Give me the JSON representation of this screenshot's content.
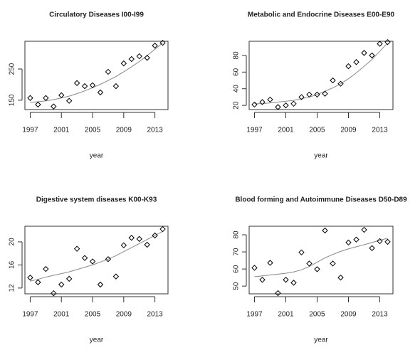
{
  "chart_data": [
    {
      "type": "scatter",
      "title": "Circulatory Diseases I00-I99",
      "x_label": "year",
      "x": [
        1997,
        1998,
        1999,
        2000,
        2001,
        2002,
        2003,
        2004,
        2005,
        2006,
        2007,
        2008,
        2009,
        2010,
        2011,
        2012,
        2013,
        2014
      ],
      "values": [
        157,
        136,
        157,
        130,
        166,
        148,
        205,
        195,
        198,
        175,
        241,
        195,
        268,
        282,
        291,
        286,
        325,
        334
      ],
      "trend": [
        143,
        145,
        148,
        152,
        157,
        163,
        171,
        180,
        190,
        201,
        213,
        226,
        241,
        257,
        274,
        293,
        313,
        334
      ],
      "xlim": [
        1996.32,
        2014.68
      ],
      "xticks": [
        1997,
        2001,
        2005,
        2009,
        2013
      ],
      "ylim": [
        120,
        339
      ],
      "yticks": [
        150,
        250
      ],
      "color": "#000000",
      "trend_color": "#888888"
    },
    {
      "type": "scatter",
      "title": "Metabolic and Endocrine Diseases E00-E90",
      "x_label": "year",
      "x": [
        1997,
        1998,
        1999,
        2000,
        2001,
        2002,
        2003,
        2004,
        2005,
        2006,
        2007,
        2008,
        2009,
        2010,
        2011,
        2012,
        2013,
        2014
      ],
      "values": [
        21,
        24,
        27,
        18,
        20,
        22,
        30,
        33,
        33,
        34,
        50,
        46,
        67,
        72,
        83,
        80,
        94,
        96
      ],
      "trend": [
        22,
        22,
        23,
        24,
        25,
        26,
        28,
        30,
        33,
        37,
        41,
        46,
        52,
        59,
        67,
        75,
        85,
        95
      ],
      "xlim": [
        1996.32,
        2014.68
      ],
      "xticks": [
        1997,
        2001,
        2005,
        2009,
        2013
      ],
      "ylim": [
        15,
        97
      ],
      "yticks": [
        20,
        40,
        60,
        80
      ],
      "color": "#000000",
      "trend_color": "#888888"
    },
    {
      "type": "scatter",
      "title": "Digestive system diseases K00-K93",
      "x_label": "year",
      "x": [
        1997,
        1998,
        1999,
        2000,
        2001,
        2002,
        2003,
        2004,
        2005,
        2006,
        2007,
        2008,
        2009,
        2010,
        2011,
        2012,
        2013,
        2014
      ],
      "values": [
        13.8,
        13,
        15.3,
        11.1,
        12.6,
        13.6,
        18.8,
        17.2,
        16.6,
        12.6,
        17,
        14,
        19.4,
        20.7,
        20.5,
        19.5,
        21.1,
        22.2
      ],
      "trend": [
        13.2,
        13.5,
        13.9,
        14.2,
        14.5,
        14.8,
        15.2,
        15.6,
        16,
        16.5,
        17,
        17.6,
        18.3,
        19,
        19.7,
        20.4,
        21.1,
        21.8
      ],
      "xlim": [
        1996.32,
        2014.68
      ],
      "xticks": [
        1997,
        2001,
        2005,
        2009,
        2013
      ],
      "ylim": [
        11,
        22.7
      ],
      "yticks": [
        12,
        16,
        20
      ],
      "color": "#000000",
      "trend_color": "#888888"
    },
    {
      "type": "scatter",
      "title": "Blood forming and Autoimmune Diseases D50-D89",
      "x_label": "year",
      "x": [
        1997,
        1998,
        1999,
        2000,
        2001,
        2002,
        2003,
        2004,
        2005,
        2006,
        2007,
        2008,
        2009,
        2010,
        2011,
        2012,
        2013,
        2014
      ],
      "values": [
        60.7,
        53.7,
        63.6,
        45.9,
        53.7,
        52,
        69.7,
        63.2,
        59.9,
        82.5,
        63.2,
        55,
        75.5,
        77.2,
        82.9,
        72.2,
        76.3,
        75.9
      ],
      "trend": [
        55.5,
        56,
        56.5,
        57,
        57.5,
        58.3,
        59.5,
        61.5,
        64,
        66.5,
        68.5,
        70.3,
        71.8,
        73,
        74.2,
        75.5,
        76.8,
        78
      ],
      "xlim": [
        1996.32,
        2014.68
      ],
      "xticks": [
        1997,
        2001,
        2005,
        2009,
        2013
      ],
      "ylim": [
        45.5,
        85
      ],
      "yticks": [
        50,
        60,
        70,
        80
      ],
      "color": "#000000",
      "trend_color": "#888888"
    }
  ]
}
